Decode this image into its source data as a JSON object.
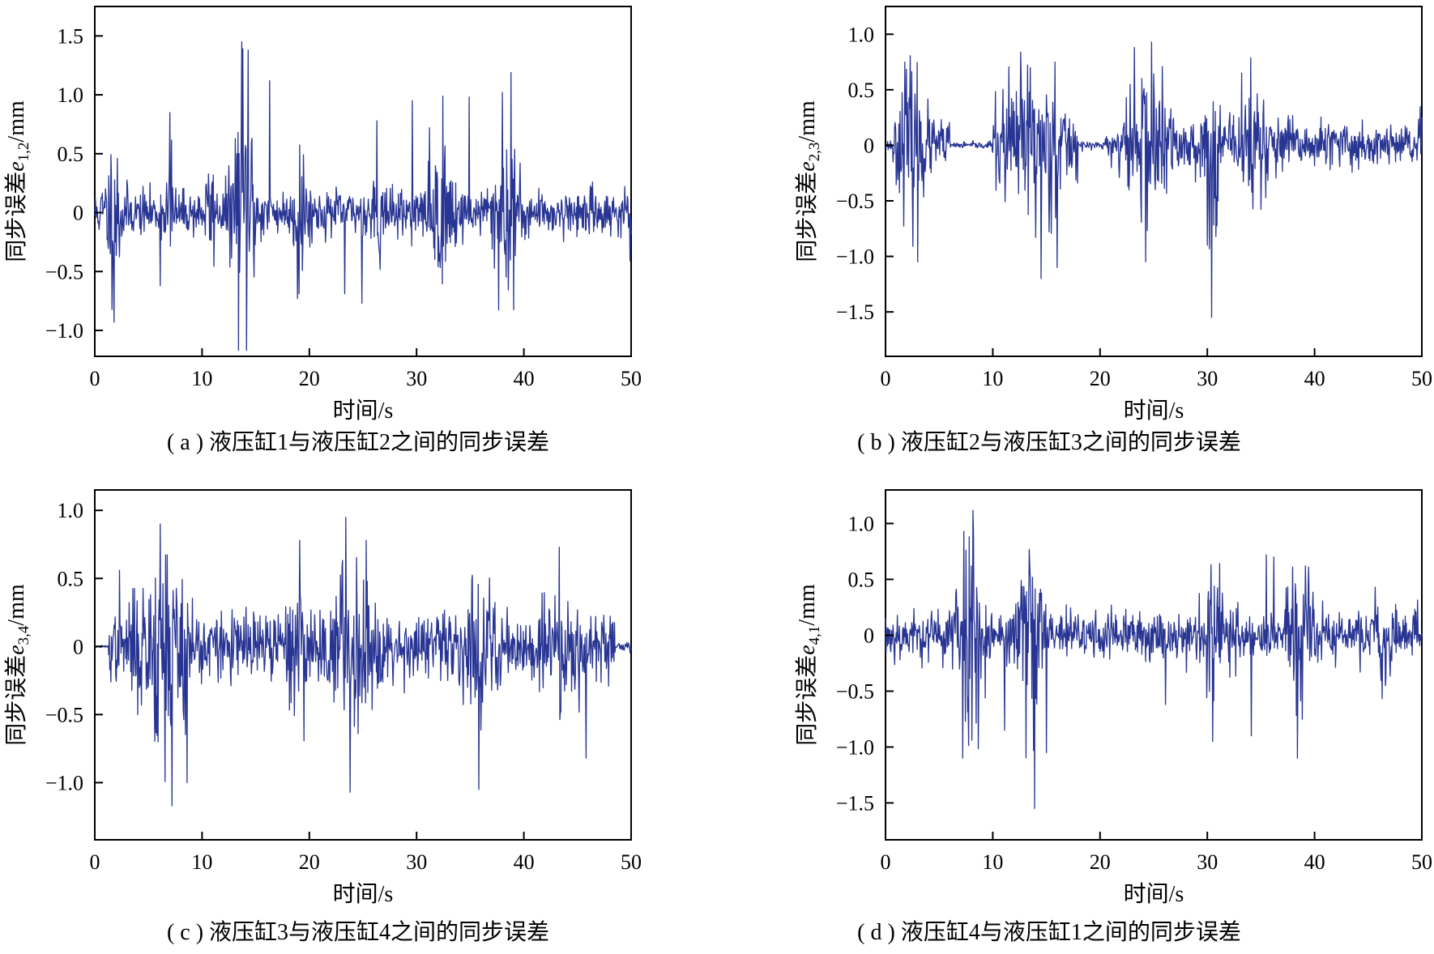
{
  "figure": {
    "line_color": "#283593"
  },
  "chart_data": [
    {
      "id": "a",
      "type": "line",
      "caption": "( a ) 液压缸1与液压缸2之间的同步误差",
      "xlabel": "时间/s",
      "ylabel_prefix": "同步误差",
      "ylabel_var": "e",
      "ylabel_sub": "1,2",
      "ylabel_unit": "/mm",
      "xlim": [
        0,
        50
      ],
      "ylim": [
        -1.22,
        1.75
      ],
      "xticks": [
        0,
        10,
        20,
        30,
        40,
        50
      ],
      "yticks": [
        -1.0,
        -0.5,
        0,
        0.5,
        1.0,
        1.5
      ],
      "ytick_labels": [
        "−1.0",
        "−0.5",
        "0",
        "0.5",
        "1.0",
        "1.5"
      ],
      "grid": false,
      "series": [
        {
          "amplitude": 0.17,
          "seed": 11,
          "bursts": [
            {
              "x": 1.8,
              "width": 0.8,
              "amp": 0.45
            },
            {
              "x": 7.0,
              "width": 0.3,
              "amp": 0.55
            },
            {
              "x": 10.8,
              "width": 0.4,
              "amp": 0.35
            },
            {
              "x": 13.9,
              "width": 1.0,
              "amp": 1.05
            },
            {
              "x": 19.2,
              "width": 0.6,
              "amp": 0.45
            },
            {
              "x": 26.3,
              "width": 0.4,
              "amp": 0.4
            },
            {
              "x": 32.5,
              "width": 1.2,
              "amp": 0.45
            },
            {
              "x": 38.3,
              "width": 1.0,
              "amp": 0.75
            }
          ],
          "peaks": [
            {
              "x": 1.8,
              "y": -0.93
            },
            {
              "x": 6.1,
              "y": -0.62
            },
            {
              "x": 7.0,
              "y": 0.85
            },
            {
              "x": 13.7,
              "y": 1.45
            },
            {
              "x": 14.3,
              "y": 1.38
            },
            {
              "x": 16.3,
              "y": 1.12
            },
            {
              "x": 18.9,
              "y": -0.73
            },
            {
              "x": 23.3,
              "y": -0.69
            },
            {
              "x": 24.9,
              "y": -0.77
            },
            {
              "x": 26.3,
              "y": 0.78
            },
            {
              "x": 29.6,
              "y": 0.95
            },
            {
              "x": 31.2,
              "y": 0.72
            },
            {
              "x": 34.9,
              "y": 0.98
            },
            {
              "x": 38.0,
              "y": 1.02
            },
            {
              "x": 38.8,
              "y": 1.19
            },
            {
              "x": 49.9,
              "y": -0.41
            }
          ]
        }
      ]
    },
    {
      "id": "b",
      "type": "line",
      "caption": "( b ) 液压缸2与液压缸3之间的同步误差",
      "xlabel": "时间/s",
      "ylabel_prefix": "同步误差",
      "ylabel_var": "e",
      "ylabel_sub": "2,3",
      "ylabel_unit": "/mm",
      "xlim": [
        0,
        50
      ],
      "ylim": [
        -1.9,
        1.25
      ],
      "xticks": [
        0,
        10,
        20,
        30,
        40,
        50
      ],
      "yticks": [
        -1.5,
        -1.0,
        -0.5,
        0,
        0.5,
        1.0
      ],
      "ytick_labels": [
        "−1.5",
        "−1.0",
        "−0.5",
        "0",
        "0.5",
        "1.0"
      ],
      "grid": false,
      "series": [
        {
          "amplitude": 0.2,
          "seed": 23,
          "quiet": [
            {
              "from": 6.0,
              "to": 10.0,
              "scale": 0.12
            },
            {
              "from": 18.0,
              "to": 20.5,
              "scale": 0.15
            },
            {
              "from": 0.0,
              "to": 0.6,
              "scale": 0.2
            }
          ],
          "bursts": [
            {
              "x": 2.5,
              "width": 1.2,
              "amp": 0.45
            },
            {
              "x": 13.5,
              "width": 2.8,
              "amp": 0.55
            },
            {
              "x": 24.5,
              "width": 2.0,
              "amp": 0.5
            },
            {
              "x": 30.5,
              "width": 0.6,
              "amp": 0.6
            },
            {
              "x": 34.5,
              "width": 1.5,
              "amp": 0.35
            }
          ],
          "peaks": [
            {
              "x": 1.8,
              "y": 0.75
            },
            {
              "x": 3.0,
              "y": -1.05
            },
            {
              "x": 13.5,
              "y": 0.7
            },
            {
              "x": 14.5,
              "y": -1.2
            },
            {
              "x": 15.8,
              "y": 0.75
            },
            {
              "x": 16.0,
              "y": -1.1
            },
            {
              "x": 23.2,
              "y": 0.88
            },
            {
              "x": 24.8,
              "y": 0.93
            },
            {
              "x": 30.4,
              "y": -1.55
            },
            {
              "x": 33.2,
              "y": 0.65
            },
            {
              "x": 30.0,
              "y": -0.9
            }
          ]
        }
      ]
    },
    {
      "id": "c",
      "type": "line",
      "caption": "( c ) 液压缸3与液压缸4之间的同步误差",
      "xlabel": "时间/s",
      "ylabel_prefix": "同步误差",
      "ylabel_var": "e",
      "ylabel_sub": "3,4",
      "ylabel_unit": "/mm",
      "xlim": [
        0,
        50
      ],
      "ylim": [
        -1.42,
        1.15
      ],
      "xticks": [
        0,
        10,
        20,
        30,
        40,
        50
      ],
      "yticks": [
        -1.0,
        -0.5,
        0,
        0.5,
        1.0
      ],
      "ytick_labels": [
        "−1.0",
        "−0.5",
        "0",
        "0.5",
        "1.0"
      ],
      "grid": false,
      "series": [
        {
          "amplitude": 0.22,
          "seed": 37,
          "quiet": [
            {
              "from": 0.0,
              "to": 1.3,
              "scale": 0.03
            },
            {
              "from": 48.5,
              "to": 50.0,
              "scale": 0.15
            }
          ],
          "bursts": [
            {
              "x": 6.5,
              "width": 2.2,
              "amp": 0.6
            },
            {
              "x": 18.8,
              "width": 1.0,
              "amp": 0.3
            },
            {
              "x": 24.0,
              "width": 2.0,
              "amp": 0.35
            },
            {
              "x": 36.0,
              "width": 1.2,
              "amp": 0.3
            },
            {
              "x": 43.0,
              "width": 2.0,
              "amp": 0.25
            }
          ],
          "peaks": [
            {
              "x": 2.3,
              "y": 0.56
            },
            {
              "x": 6.1,
              "y": 0.9
            },
            {
              "x": 7.2,
              "y": -1.17
            },
            {
              "x": 8.6,
              "y": -1.0
            },
            {
              "x": 19.1,
              "y": 0.78
            },
            {
              "x": 23.4,
              "y": 0.95
            },
            {
              "x": 23.8,
              "y": -1.07
            },
            {
              "x": 25.3,
              "y": 0.78
            },
            {
              "x": 35.8,
              "y": -1.05
            },
            {
              "x": 43.3,
              "y": 0.73
            },
            {
              "x": 45.8,
              "y": -0.82
            }
          ]
        }
      ]
    },
    {
      "id": "d",
      "type": "line",
      "caption": "( d ) 液压缸4与液压缸1之间的同步误差",
      "xlabel": "时间/s",
      "ylabel_prefix": "同步误差",
      "ylabel_var": "e",
      "ylabel_sub": "4,1",
      "ylabel_unit": "/mm",
      "xlim": [
        0,
        50
      ],
      "ylim": [
        -1.83,
        1.3
      ],
      "xticks": [
        0,
        10,
        20,
        30,
        40,
        50
      ],
      "yticks": [
        -1.5,
        -1.0,
        -0.5,
        0,
        0.5,
        1.0
      ],
      "ytick_labels": [
        "−1.5",
        "−1.0",
        "−0.5",
        "0",
        "0.5",
        "1.0"
      ],
      "grid": false,
      "series": [
        {
          "amplitude": 0.2,
          "seed": 53,
          "bursts": [
            {
              "x": 7.8,
              "width": 1.4,
              "amp": 0.65
            },
            {
              "x": 13.5,
              "width": 1.2,
              "amp": 0.75
            },
            {
              "x": 31.0,
              "width": 1.2,
              "amp": 0.4
            },
            {
              "x": 38.5,
              "width": 1.0,
              "amp": 0.55
            },
            {
              "x": 46.5,
              "width": 1.6,
              "amp": 0.25
            }
          ],
          "peaks": [
            {
              "x": 7.3,
              "y": 0.93
            },
            {
              "x": 8.2,
              "y": 0.9
            },
            {
              "x": 7.2,
              "y": -1.1
            },
            {
              "x": 11.1,
              "y": -0.85
            },
            {
              "x": 13.9,
              "y": -1.55
            },
            {
              "x": 15.0,
              "y": -1.05
            },
            {
              "x": 26.1,
              "y": -0.62
            },
            {
              "x": 30.5,
              "y": -0.95
            },
            {
              "x": 34.1,
              "y": -0.9
            },
            {
              "x": 35.5,
              "y": 0.72
            },
            {
              "x": 38.4,
              "y": -1.1
            },
            {
              "x": 36.2,
              "y": 0.7
            }
          ]
        }
      ]
    }
  ]
}
